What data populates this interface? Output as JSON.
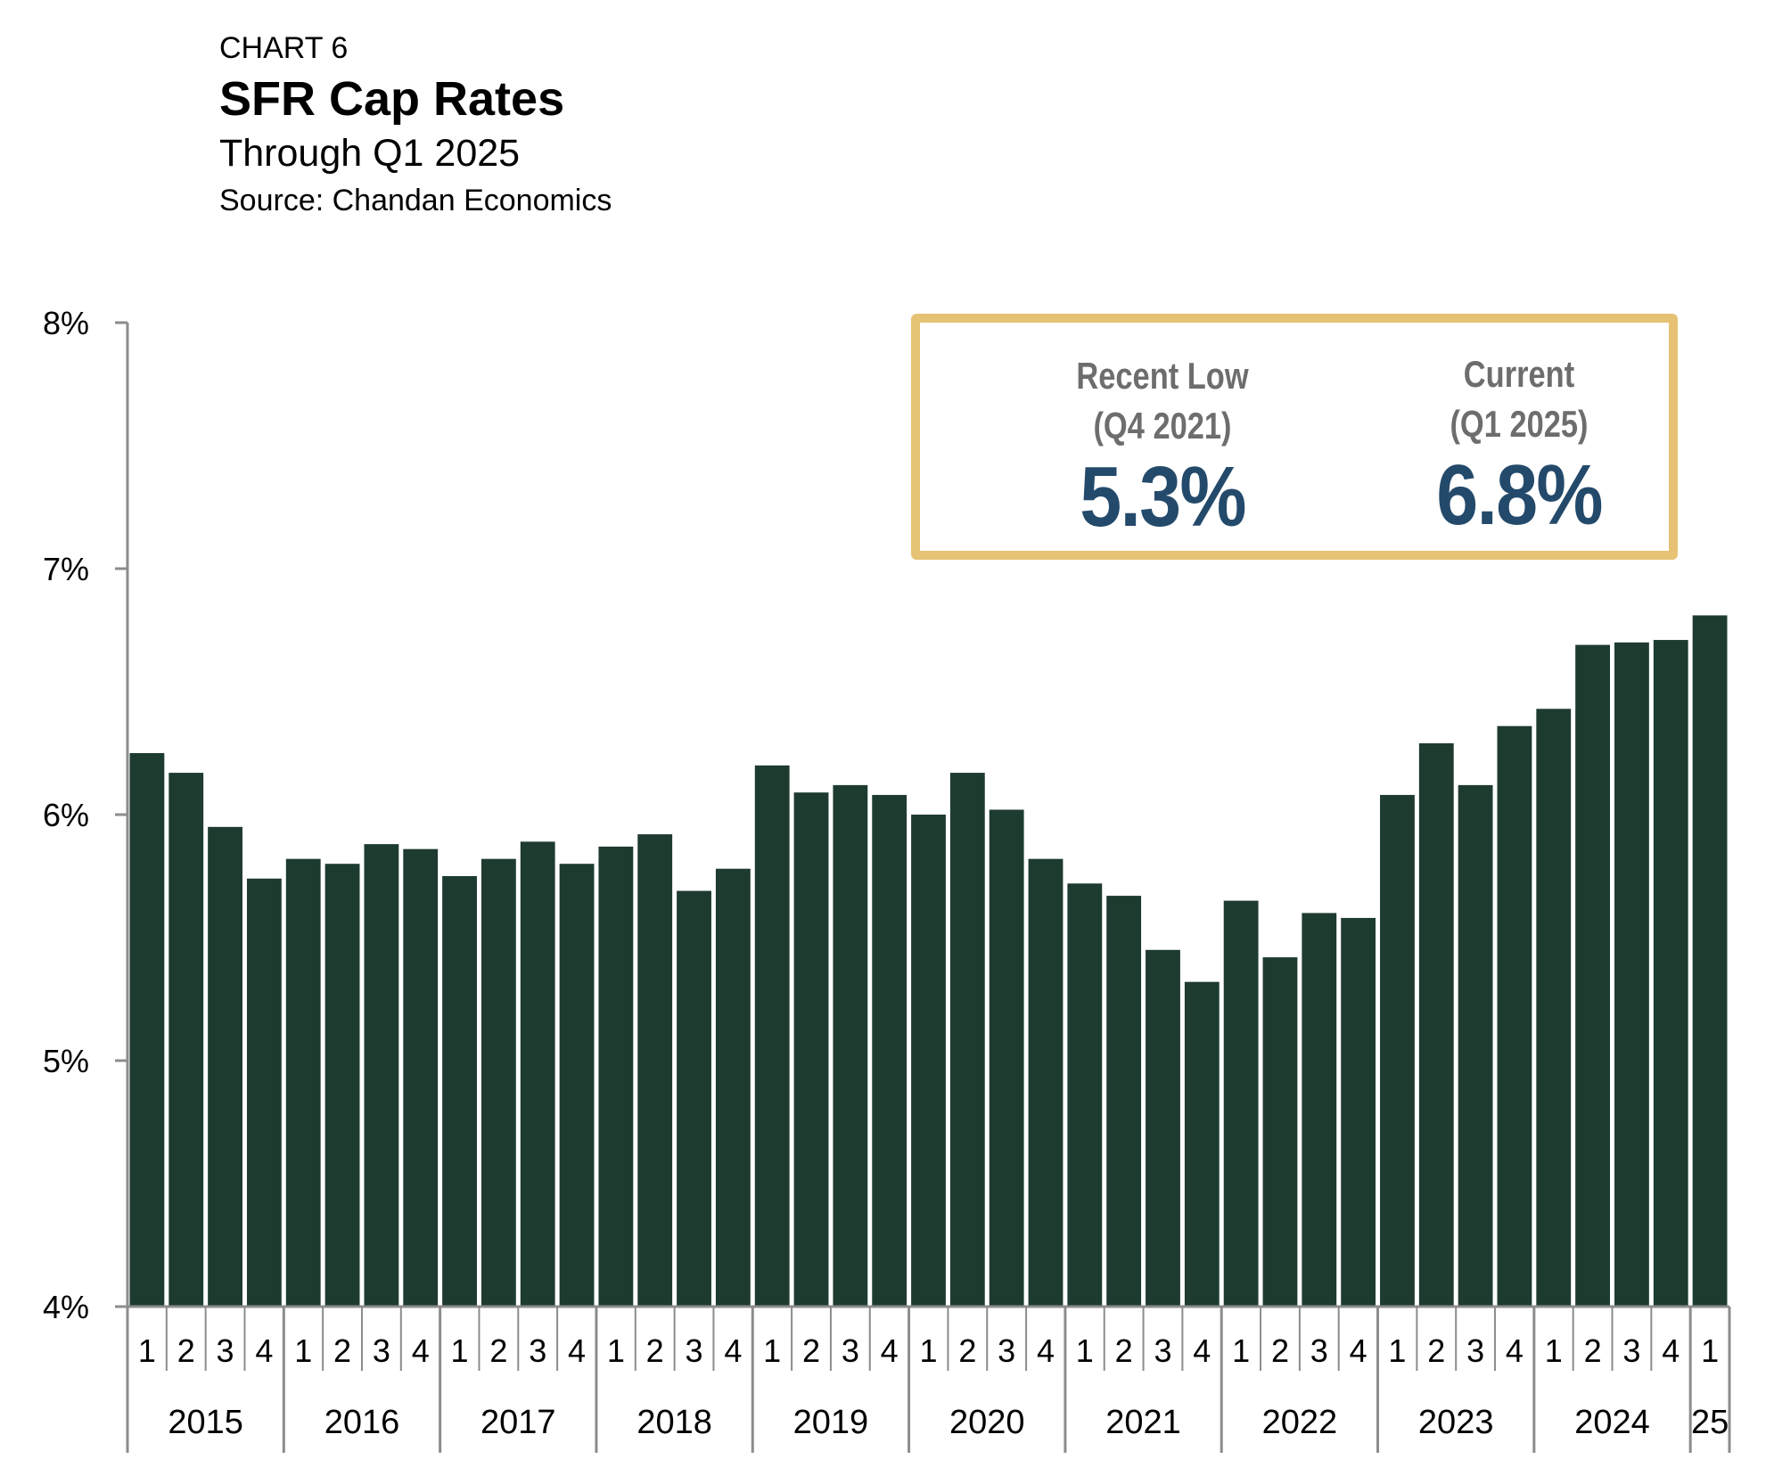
{
  "header": {
    "label": "CHART 6",
    "title": "SFR Cap Rates",
    "subtitle": "Through Q1 2025",
    "source": "Source: Chandan Economics"
  },
  "callout": {
    "left_label_line1": "Recent Low",
    "left_label_line2": "(Q4 2021)",
    "left_value": "5.3%",
    "right_label_line1": "Current",
    "right_label_line2": "(Q1 2025)",
    "right_value": "6.8%",
    "border_color": "#e6c275",
    "value_color": "#244a6b"
  },
  "chart_data": {
    "type": "bar",
    "title": "SFR Cap Rates",
    "ylim": [
      4,
      8
    ],
    "yticks": [
      "4%",
      "5%",
      "6%",
      "7%",
      "8%"
    ],
    "ytick_values": [
      4,
      5,
      6,
      7,
      8
    ],
    "grid": false,
    "bar_color": "#1e3b30",
    "quarters": [
      "1",
      "2",
      "3",
      "4",
      "1",
      "2",
      "3",
      "4",
      "1",
      "2",
      "3",
      "4",
      "1",
      "2",
      "3",
      "4",
      "1",
      "2",
      "3",
      "4",
      "1",
      "2",
      "3",
      "4",
      "1",
      "2",
      "3",
      "4",
      "1",
      "2",
      "3",
      "4",
      "1",
      "2",
      "3",
      "4",
      "1",
      "2",
      "3",
      "4",
      "1"
    ],
    "years": [
      {
        "label": "2015",
        "count": 4
      },
      {
        "label": "2016",
        "count": 4
      },
      {
        "label": "2017",
        "count": 4
      },
      {
        "label": "2018",
        "count": 4
      },
      {
        "label": "2019",
        "count": 4
      },
      {
        "label": "2020",
        "count": 4
      },
      {
        "label": "2021",
        "count": 4
      },
      {
        "label": "2022",
        "count": 4
      },
      {
        "label": "2023",
        "count": 4
      },
      {
        "label": "2024",
        "count": 4
      },
      {
        "label": "25",
        "count": 1
      }
    ],
    "values": [
      6.25,
      6.17,
      5.95,
      5.74,
      5.82,
      5.8,
      5.88,
      5.86,
      5.75,
      5.82,
      5.89,
      5.8,
      5.87,
      5.92,
      5.69,
      5.78,
      6.2,
      6.09,
      6.12,
      6.08,
      6.0,
      6.17,
      6.02,
      5.82,
      5.72,
      5.67,
      5.45,
      5.32,
      5.65,
      5.42,
      5.6,
      5.58,
      6.08,
      6.29,
      6.12,
      6.36,
      6.43,
      6.69,
      6.7,
      6.71,
      6.81
    ]
  }
}
